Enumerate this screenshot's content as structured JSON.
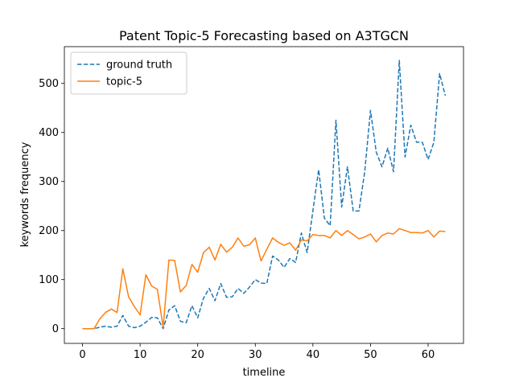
{
  "chart_data": {
    "type": "line",
    "title": "Patent Topic-5 Forecasting based on A3TGCN",
    "xlabel": "timeline",
    "ylabel": "keywords frequency",
    "xlim": [
      -3.15,
      66.15
    ],
    "ylim": [
      -30,
      575
    ],
    "xticks": [
      0,
      10,
      20,
      30,
      40,
      50,
      60
    ],
    "yticks": [
      0,
      100,
      200,
      300,
      400,
      500
    ],
    "grid": false,
    "legend_position": "upper-left",
    "x": [
      0,
      1,
      2,
      3,
      4,
      5,
      6,
      7,
      8,
      9,
      10,
      11,
      12,
      13,
      14,
      15,
      16,
      17,
      18,
      19,
      20,
      21,
      22,
      23,
      24,
      25,
      26,
      27,
      28,
      29,
      30,
      31,
      32,
      33,
      34,
      35,
      36,
      37,
      38,
      39,
      40,
      41,
      42,
      43,
      44,
      45,
      46,
      47,
      48,
      49,
      50,
      51,
      52,
      53,
      54,
      55,
      56,
      57,
      58,
      59,
      60,
      61,
      62,
      63
    ],
    "series": [
      {
        "name": "ground truth",
        "color": "#1f77b4",
        "style": "dashed",
        "values": [
          0,
          0,
          0,
          3,
          5,
          3,
          5,
          27,
          5,
          2,
          5,
          13,
          23,
          22,
          0,
          38,
          47,
          15,
          12,
          47,
          22,
          62,
          82,
          57,
          92,
          64,
          65,
          82,
          72,
          85,
          100,
          93,
          92,
          148,
          140,
          125,
          143,
          135,
          195,
          155,
          240,
          324,
          225,
          210,
          425,
          248,
          330,
          240,
          240,
          320,
          445,
          360,
          330,
          368,
          320,
          547,
          350,
          415,
          380,
          380,
          345,
          380,
          520,
          475
        ]
      },
      {
        "name": "topic-5",
        "color": "#ff7f0e",
        "style": "solid",
        "values": [
          0,
          0,
          0,
          20,
          33,
          40,
          33,
          122,
          65,
          45,
          28,
          110,
          87,
          80,
          3,
          140,
          139,
          75,
          88,
          131,
          115,
          155,
          166,
          140,
          172,
          156,
          166,
          185,
          168,
          171,
          185,
          138,
          162,
          185,
          176,
          170,
          175,
          160,
          181,
          179,
          192,
          190,
          190,
          185,
          200,
          190,
          200,
          192,
          183,
          187,
          193,
          177,
          190,
          195,
          193,
          204,
          200,
          196,
          196,
          195,
          200,
          187,
          199,
          198
        ]
      }
    ]
  }
}
